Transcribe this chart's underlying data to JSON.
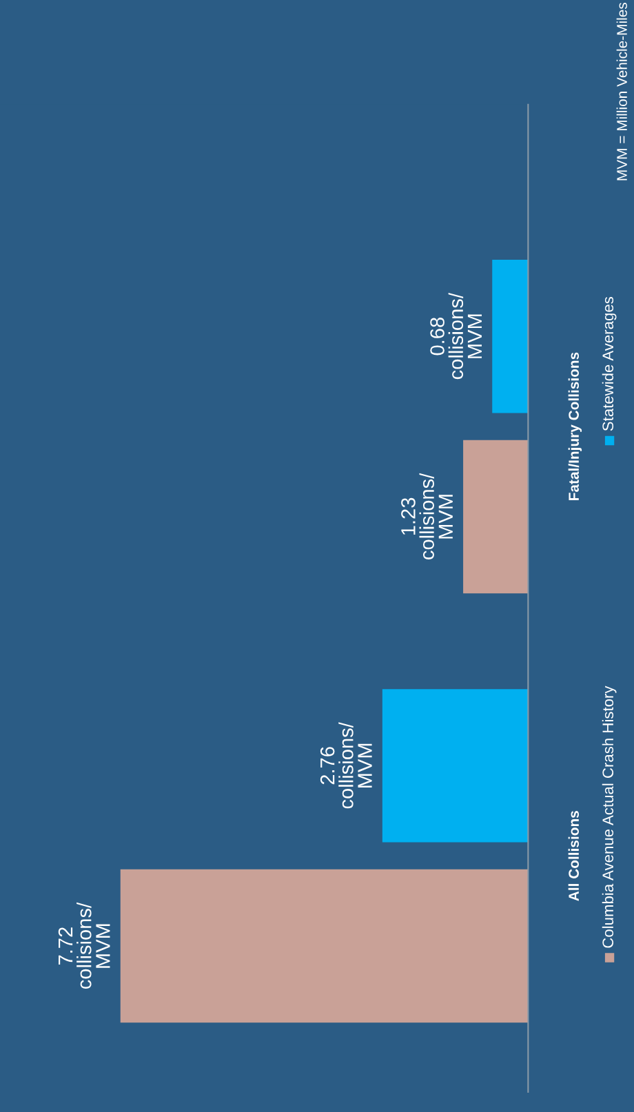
{
  "chart_data": {
    "type": "bar",
    "orientation": "horizontal",
    "categories": [
      "Fatal/Injury Collisions",
      "All Collisions"
    ],
    "series": [
      {
        "name": "Columbia Avenue Actual Crash History",
        "color": "#c9a197",
        "values": [
          1.23,
          7.72
        ],
        "value_labels": [
          "1.23\ncollisions/\nMVM",
          "7.72\ncollisions/\nMVM"
        ]
      },
      {
        "name": "Statewide Averages",
        "color": "#00b0f0",
        "values": [
          0.68,
          2.76
        ],
        "value_labels": [
          "0.68\ncollisions/\nMVM",
          "2.76\ncollisions/\nMVM"
        ]
      }
    ],
    "xlim": [
      10,
      0
    ],
    "tick_labels": "y",
    "grid": false,
    "legend": "right",
    "annotations": [
      "MVM = Million Vehicle-Miles"
    ]
  }
}
